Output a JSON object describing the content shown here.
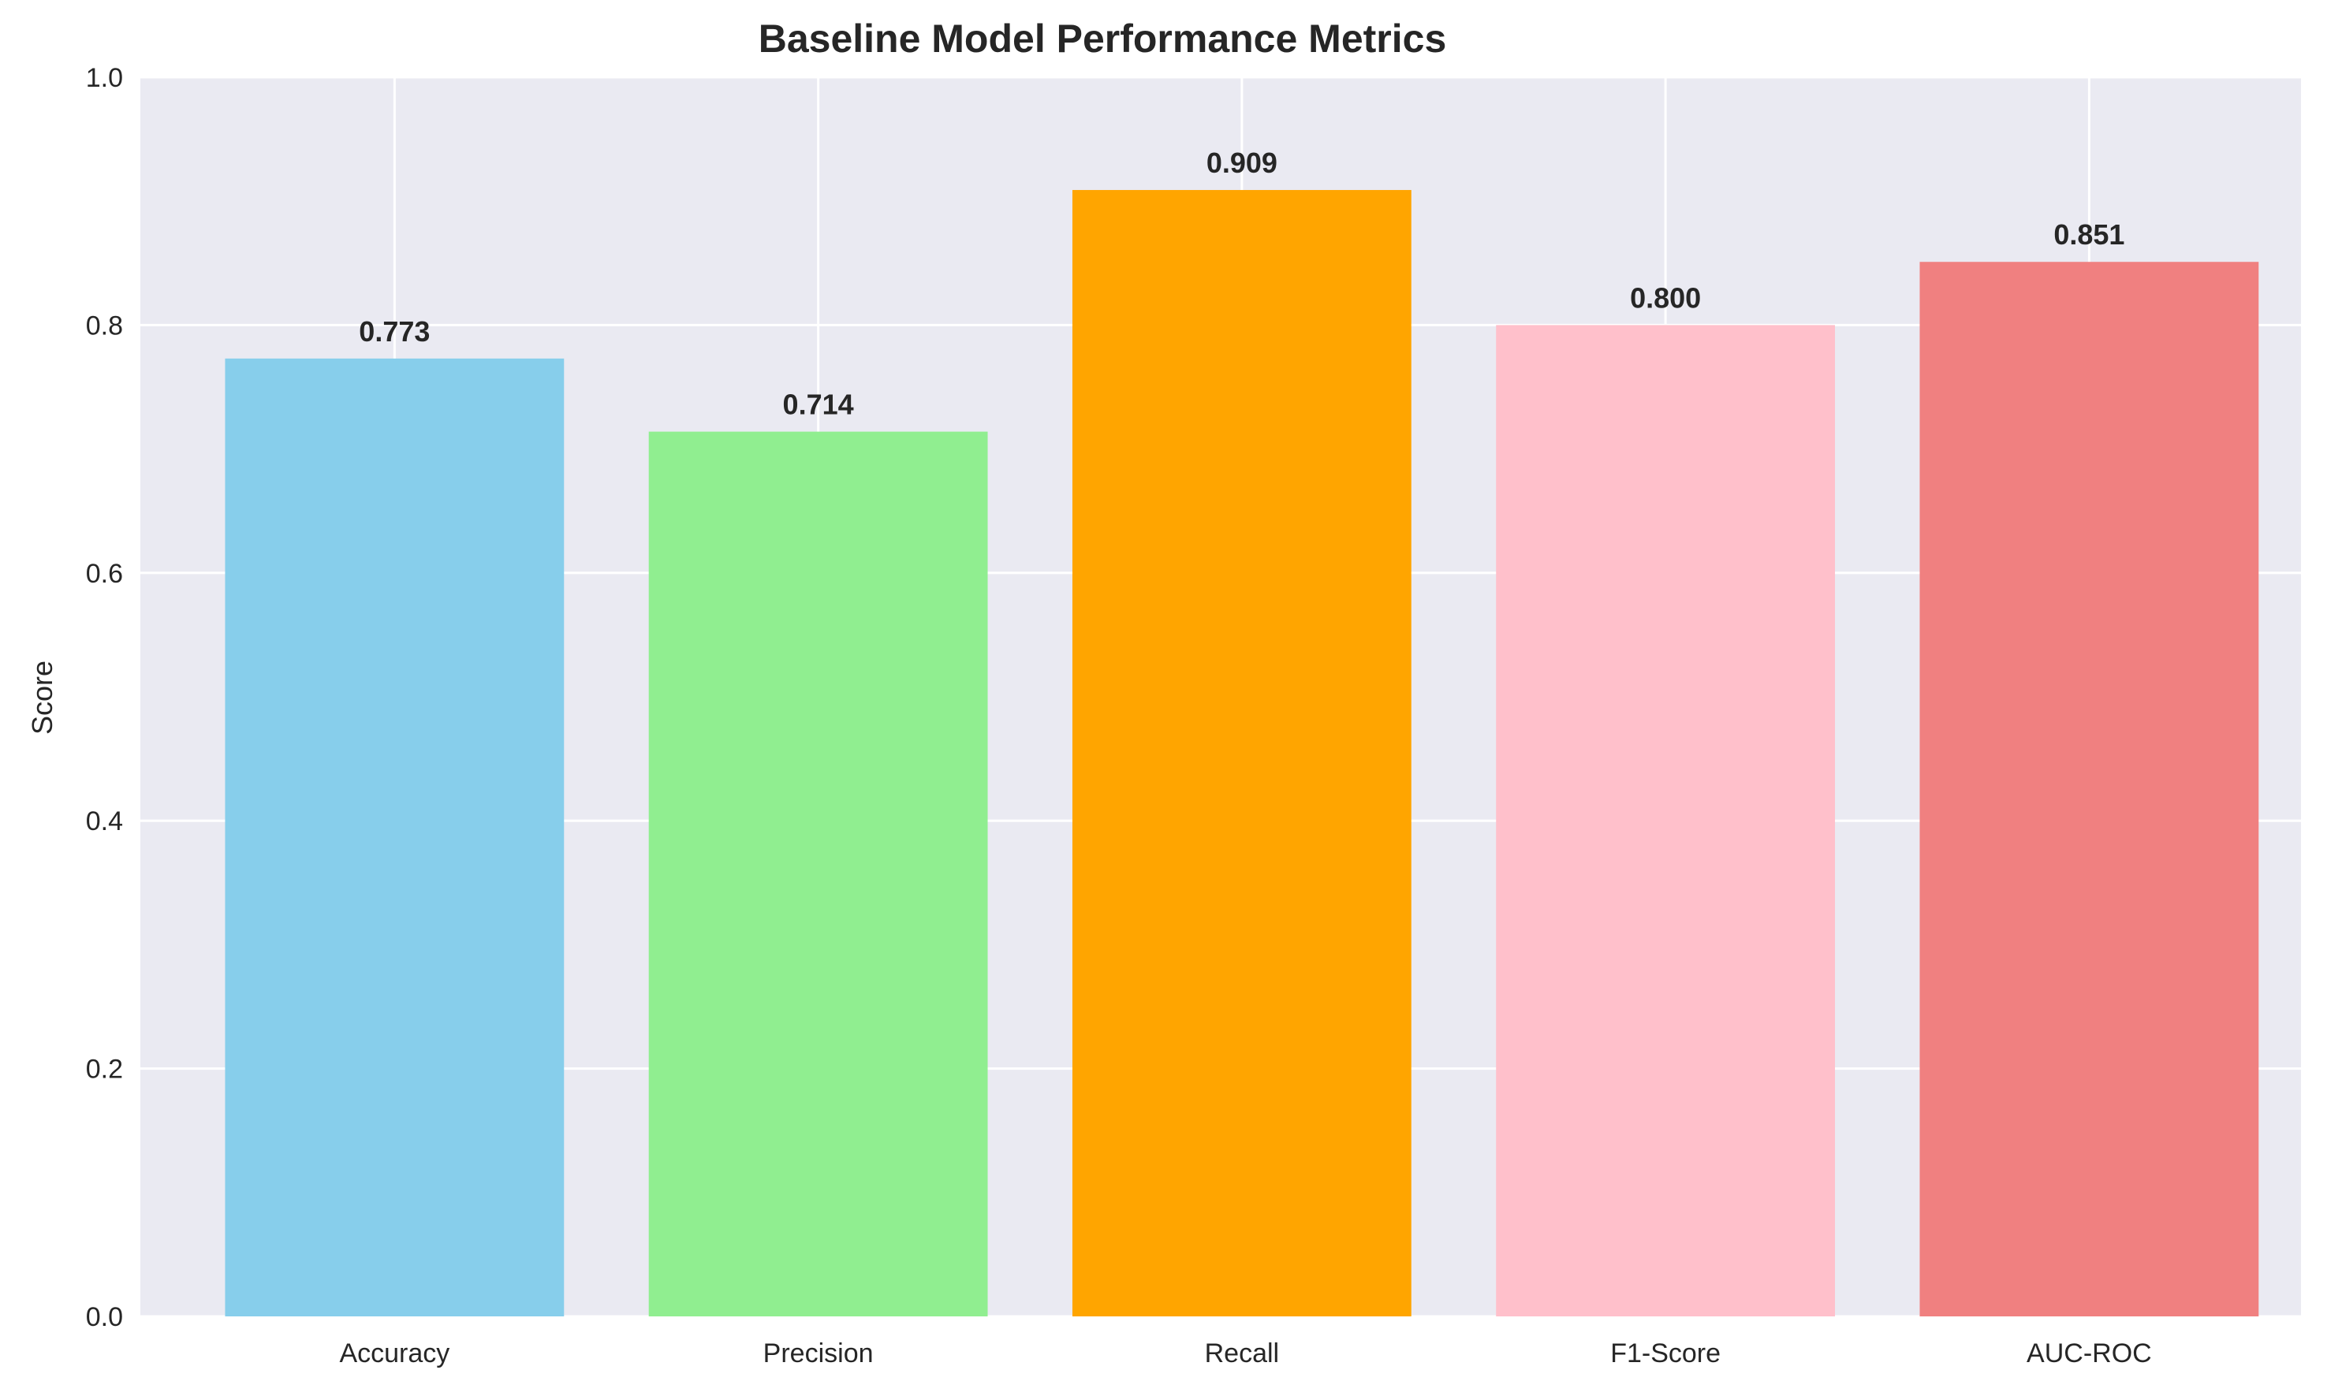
{
  "chart_data": {
    "type": "bar",
    "title": "Baseline Model Performance Metrics",
    "xlabel": "",
    "ylabel": "Score",
    "categories": [
      "Accuracy",
      "Precision",
      "Recall",
      "F1-Score",
      "AUC-ROC"
    ],
    "values": [
      0.773,
      0.714,
      0.909,
      0.8,
      0.851
    ],
    "value_labels": [
      "0.773",
      "0.714",
      "0.909",
      "0.800",
      "0.851"
    ],
    "colors": [
      "#87CEEB",
      "#90EE90",
      "#FFA500",
      "#FFC0CB",
      "#F08080"
    ],
    "ylim": [
      0,
      1
    ],
    "yticks": [
      0.0,
      0.2,
      0.4,
      0.6,
      0.8,
      1.0
    ],
    "ytick_labels": [
      "0.0",
      "0.2",
      "0.4",
      "0.6",
      "0.8",
      "1.0"
    ],
    "grid": true,
    "legend": "none",
    "background": "#EAEAF2",
    "grid_color": "#FFFFFF"
  }
}
